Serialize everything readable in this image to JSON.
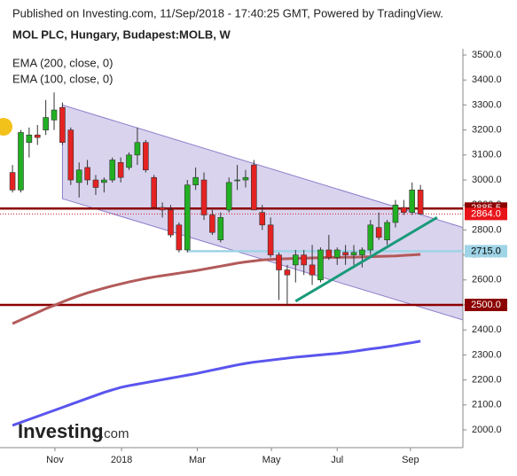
{
  "chart_data": {
    "type": "candlestick",
    "title": "MOL PLC, Hungary, Budapest:MOLB, W",
    "subtitle": "Published on Investing.com, 11/Sep/2018 - 17:40:25 GMT, Powered by TradingView.",
    "x": [
      1,
      2,
      3,
      4,
      5,
      6,
      7,
      8,
      9,
      10,
      11,
      12,
      13,
      14,
      15,
      16,
      17,
      18,
      19,
      20,
      21,
      22,
      23,
      24,
      25,
      26,
      27,
      28,
      29,
      30,
      31,
      32,
      33,
      34,
      35,
      36,
      37,
      38,
      39,
      40,
      41,
      42,
      43,
      44,
      45,
      46,
      47,
      48,
      49,
      50
    ],
    "open": [
      3030,
      2960,
      3150,
      3180,
      3200,
      3240,
      3290,
      3200,
      2990,
      3050,
      3000,
      2990,
      3000,
      3070,
      3050,
      3100,
      3150,
      3010,
      2890,
      2880,
      2820,
      2720,
      2980,
      3000,
      2860,
      2760,
      2880,
      3000,
      3000,
      3060,
      2870,
      2820,
      2700,
      2640,
      2660,
      2700,
      2660,
      2600,
      2720,
      2690,
      2710,
      2700,
      2700,
      2720,
      2810,
      2760,
      2830,
      2890,
      2870,
      2960
    ],
    "high": [
      3060,
      3200,
      3210,
      3220,
      3320,
      3350,
      3310,
      3210,
      3070,
      3080,
      3020,
      3010,
      3090,
      3090,
      3110,
      3210,
      3160,
      3020,
      2910,
      2900,
      2830,
      3000,
      3050,
      3030,
      2880,
      2870,
      3010,
      3060,
      3040,
      3080,
      2900,
      2850,
      2710,
      2660,
      2720,
      2720,
      2740,
      2730,
      2780,
      2730,
      2740,
      2740,
      2730,
      2840,
      2870,
      2840,
      2920,
      2920,
      2990,
      2980
    ],
    "low": [
      2950,
      2950,
      3090,
      3140,
      3180,
      3200,
      3140,
      2980,
      2930,
      2980,
      2940,
      2950,
      2990,
      2990,
      3040,
      3060,
      3030,
      2890,
      2850,
      2770,
      2710,
      2710,
      2960,
      2840,
      2780,
      2750,
      2870,
      2960,
      2970,
      2880,
      2800,
      2690,
      2520,
      2500,
      2590,
      2620,
      2580,
      2590,
      2680,
      2660,
      2660,
      2660,
      2650,
      2700,
      2760,
      2740,
      2810,
      2860,
      2860,
      2860
    ],
    "close": [
      2960,
      3190,
      3180,
      3170,
      3250,
      3280,
      3150,
      3000,
      3040,
      3000,
      2970,
      3000,
      3080,
      3010,
      3100,
      3150,
      3040,
      2890,
      2880,
      2780,
      2720,
      2980,
      3010,
      2860,
      2790,
      2850,
      2990,
      3000,
      3010,
      2880,
      2820,
      2700,
      2640,
      2620,
      2700,
      2660,
      2620,
      2720,
      2690,
      2720,
      2700,
      2710,
      2720,
      2820,
      2770,
      2830,
      2900,
      2870,
      2960,
      2864
    ],
    "up_color": "#22b022",
    "down_color": "#e52222",
    "series": [
      {
        "name": "EMA (200, close, 0)",
        "color": "#5a55ee",
        "values": [
          2018,
          2030,
          2042,
          2054,
          2066,
          2078,
          2090,
          2102,
          2114,
          2126,
          2138,
          2150,
          2160,
          2170,
          2177,
          2183,
          2189,
          2195,
          2201,
          2207,
          2213,
          2219,
          2225,
          2232,
          2239,
          2246,
          2253,
          2260,
          2266,
          2271,
          2275,
          2279,
          2283,
          2287,
          2291,
          2294,
          2297,
          2300,
          2303,
          2306,
          2310,
          2314,
          2319,
          2324,
          2328,
          2333,
          2338,
          2344,
          2349,
          2355
        ]
      },
      {
        "name": "EMA (100, close, 0)",
        "color": "#b35a5a",
        "values": [
          2425,
          2440,
          2455,
          2470,
          2485,
          2498,
          2512,
          2525,
          2537,
          2548,
          2558,
          2567,
          2576,
          2584,
          2592,
          2599,
          2606,
          2612,
          2617,
          2622,
          2627,
          2632,
          2637,
          2643,
          2649,
          2655,
          2661,
          2667,
          2672,
          2676,
          2680,
          2682,
          2684,
          2685,
          2686,
          2687,
          2688,
          2689,
          2690,
          2690,
          2691,
          2691,
          2692,
          2693,
          2694,
          2695,
          2696,
          2698,
          2700,
          2702
        ]
      }
    ],
    "levels": [
      {
        "value": 2885.5,
        "label": "2885.5",
        "color": "#8b0000",
        "style": "solid"
      },
      {
        "value": 2864,
        "label": "2864.0",
        "color": "#e8141a",
        "style": "dotted"
      },
      {
        "value": 2715,
        "label": "2715.0",
        "color": "#9fd4e6",
        "style": "solid",
        "from": 22
      },
      {
        "value": 2500,
        "label": "2500.0",
        "color": "#8b0000",
        "style": "solid"
      }
    ],
    "channel": {
      "x": [
        7,
        55.1
      ],
      "upper": [
        3300,
        2810
      ],
      "lower": [
        2925,
        2440
      ],
      "color": "#b9aee0"
    },
    "trendline": {
      "x": [
        35,
        52
      ],
      "y": [
        2515,
        2850
      ],
      "color": "#1a9a7a"
    },
    "xlim": [
      -0.5,
      55.1
    ],
    "ylim": [
      1929,
      3525
    ],
    "xticks": [
      {
        "value": 6.1,
        "label": "Nov"
      },
      {
        "value": 14.1,
        "label": "2018"
      },
      {
        "value": 23.2,
        "label": "Mar"
      },
      {
        "value": 32.1,
        "label": "May"
      },
      {
        "value": 40.0,
        "label": "Jul"
      },
      {
        "value": 48.8,
        "label": "Sep"
      }
    ],
    "yticks": [
      {
        "value": 2000,
        "label": "2000.0"
      },
      {
        "value": 2100,
        "label": "2100.0"
      },
      {
        "value": 2200,
        "label": "2200.0"
      },
      {
        "value": 2300,
        "label": "2300.0"
      },
      {
        "value": 2400,
        "label": "2400.0"
      },
      {
        "value": 2500,
        "label": "2500.0"
      },
      {
        "value": 2600,
        "label": "2600.0"
      },
      {
        "value": 2700,
        "label": "2700.0"
      },
      {
        "value": 2800,
        "label": "2800.0"
      },
      {
        "value": 2900,
        "label": "2900.0"
      },
      {
        "value": 3000,
        "label": "3000.0"
      },
      {
        "value": 3100,
        "label": "3100.0"
      },
      {
        "value": 3200,
        "label": "3200.0"
      },
      {
        "value": 3300,
        "label": "3300.0"
      },
      {
        "value": 3400,
        "label": "3400.0"
      },
      {
        "value": 3500,
        "label": "3500.0"
      }
    ]
  },
  "logo": {
    "brand": "Investing",
    "suffix": ".com"
  }
}
